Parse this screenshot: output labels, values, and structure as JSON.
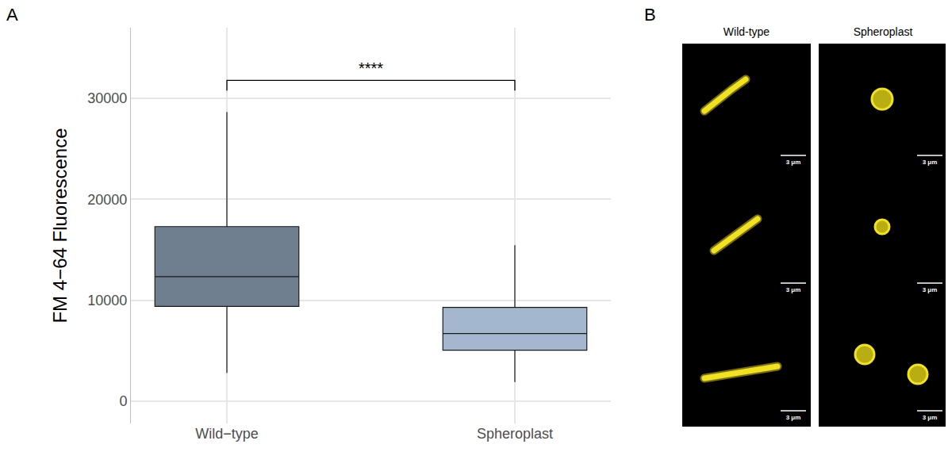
{
  "chart_data": {
    "type": "box",
    "categories": [
      "Wild−type",
      "Spheroplast"
    ],
    "lower_whisker": [
      2800,
      1900
    ],
    "q1": [
      9400,
      5050
    ],
    "median": [
      12350,
      6700
    ],
    "q3": [
      17300,
      9300
    ],
    "upper_whisker": [
      28650,
      15450
    ],
    "colors": [
      "#6f7f90",
      "#a3b8cf"
    ],
    "y_label": "FM 4−64 Fluorescence",
    "ylim": [
      -2200,
      37000
    ],
    "yticks": [
      0,
      10000,
      20000,
      30000
    ],
    "grid": true,
    "significance": {
      "label": "****",
      "pair": [
        "Wild−type",
        "Spheroplast"
      ]
    }
  },
  "panel_labels": [
    "A",
    "B"
  ],
  "micrographs": {
    "columns": [
      {
        "title": "Wild-type",
        "images": 3,
        "scale_bar": "3 μm"
      },
      {
        "title": "Spheroplast",
        "images": 3,
        "scale_bar": "3 μm"
      }
    ]
  }
}
